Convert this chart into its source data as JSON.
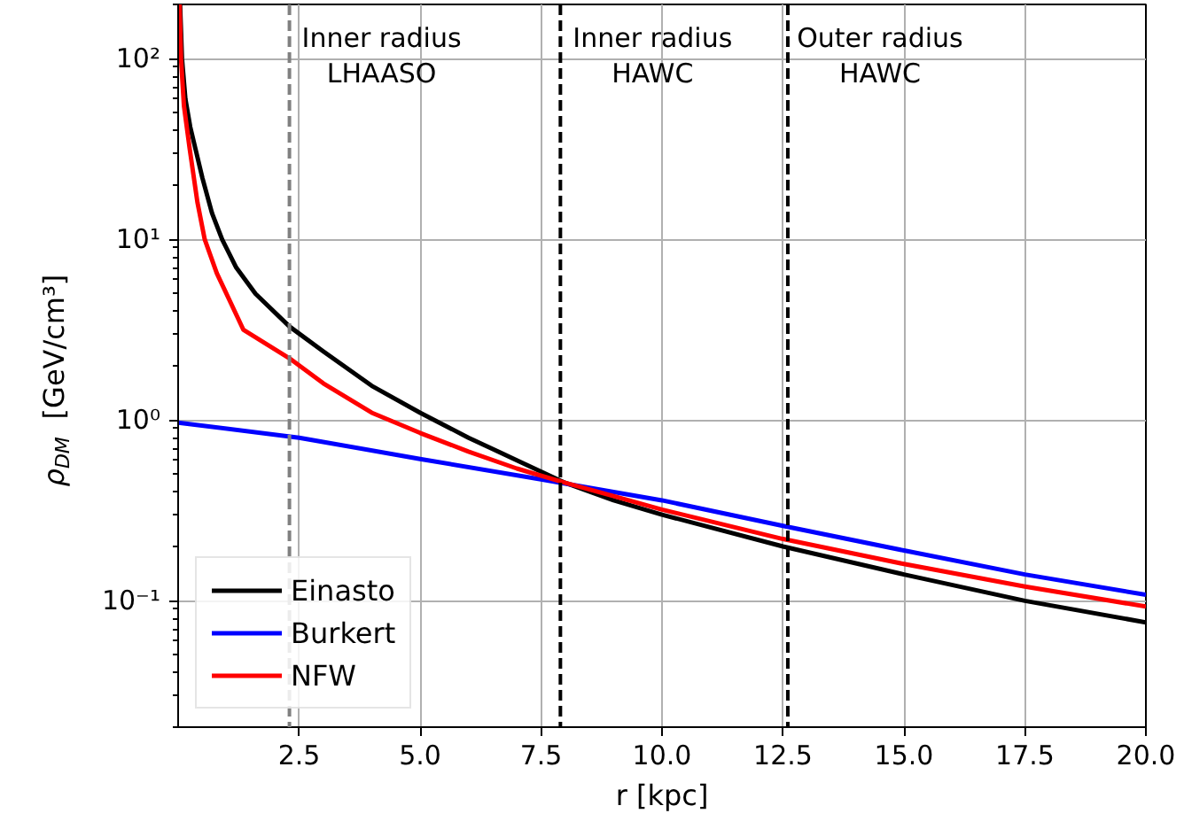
{
  "chart_data": {
    "type": "line",
    "xlabel": "r [kpc]",
    "ylabel": "ρ$_{DM}$  [GeV/cm³]",
    "log": "y",
    "grid": true,
    "legend": "bottom left",
    "line_style": "solid",
    "marker": "none",
    "xlim": [
      0,
      20
    ],
    "ylim": [
      0.02,
      200
    ],
    "xticks": [
      {
        "value": 2.5,
        "label": "2.5"
      },
      {
        "value": 5,
        "label": "5.0"
      },
      {
        "value": 7.5,
        "label": "7.5"
      },
      {
        "value": 10,
        "label": "10.0"
      },
      {
        "value": 12.5,
        "label": "12.5"
      },
      {
        "value": 15,
        "label": "15.0"
      },
      {
        "value": 17.5,
        "label": "17.5"
      },
      {
        "value": 20,
        "label": "20.0"
      }
    ],
    "yticks": [
      {
        "value": 0.1,
        "label": "10⁻¹"
      },
      {
        "value": 1,
        "label": "10⁰"
      },
      {
        "value": 10,
        "label": "10¹"
      },
      {
        "value": 100,
        "label": "10²"
      }
    ],
    "series": [
      {
        "name": "Einasto",
        "color": "#000000",
        "x": [
          0.04,
          0.08,
          0.15,
          0.25,
          0.36,
          0.5,
          0.7,
          0.91,
          1.2,
          1.6,
          2.3,
          3,
          4,
          5,
          6,
          7,
          8,
          9,
          10,
          12.5,
          15,
          17.5,
          20
        ],
        "values": [
          200,
          100,
          60,
          42,
          31.6,
          22,
          14,
          10,
          7,
          5,
          3.3,
          2.4,
          1.55,
          1.1,
          0.8,
          0.6,
          0.45,
          0.36,
          0.3,
          0.2,
          0.14,
          0.1,
          0.076
        ]
      },
      {
        "name": "Burkert",
        "color": "#0000ff",
        "x": [
          0,
          2.5,
          5,
          7.5,
          10,
          12.5,
          15,
          17.5,
          20
        ],
        "values": [
          0.97,
          0.8,
          0.61,
          0.47,
          0.36,
          0.26,
          0.19,
          0.14,
          0.108
        ]
      },
      {
        "name": "NFW",
        "color": "#ff0000",
        "x": [
          0.03,
          0.06,
          0.12,
          0.24,
          0.4,
          0.55,
          0.8,
          1.35,
          2.3,
          3,
          4,
          5,
          6,
          7,
          8,
          9,
          10,
          12.5,
          15,
          17.5,
          20
        ],
        "values": [
          200,
          100,
          55,
          31.6,
          16,
          10,
          6.5,
          3.16,
          2.2,
          1.6,
          1.1,
          0.85,
          0.67,
          0.54,
          0.45,
          0.38,
          0.32,
          0.22,
          0.16,
          0.12,
          0.093
        ]
      }
    ],
    "ref_lines": [
      {
        "axis": "x",
        "value": 2.3,
        "label": "Inner radius\nLHAASO",
        "color": "#808080",
        "line_style": "dashed"
      },
      {
        "axis": "x",
        "value": 7.9,
        "label": "Inner radius\nHAWC",
        "color": "#000000",
        "line_style": "dashed"
      },
      {
        "axis": "x",
        "value": 12.6,
        "label": "Outer radius\nHAWC",
        "color": "#000000",
        "line_style": "dashed"
      }
    ]
  }
}
